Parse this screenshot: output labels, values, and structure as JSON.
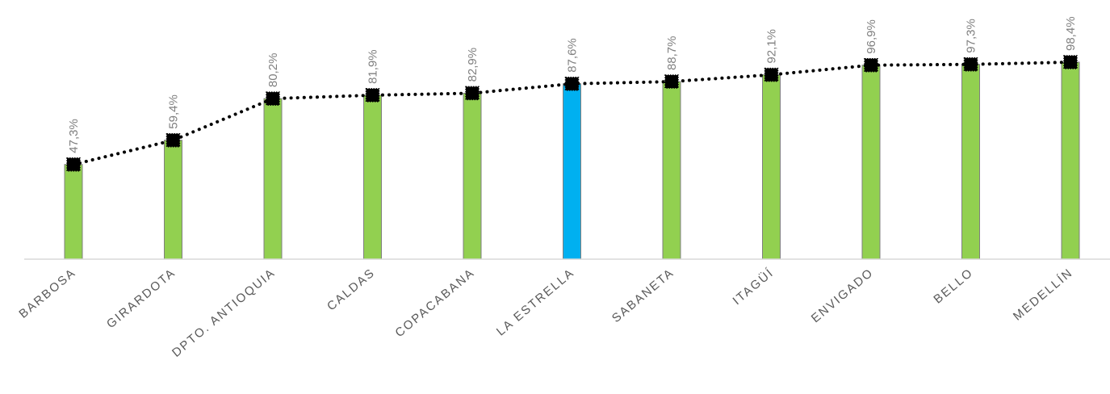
{
  "chart_data": {
    "type": "bar",
    "categories": [
      "BARBOSA",
      "GIRARDOTA",
      "DPTO. ANTIOQUIA",
      "CALDAS",
      "COPACABANA",
      "LA ESTRELLA",
      "SABANETA",
      "ITAGÜÍ",
      "ENVIGADO",
      "BELLO",
      "MEDELLÍN"
    ],
    "values": [
      47.3,
      59.4,
      80.2,
      81.9,
      82.9,
      87.6,
      88.7,
      92.1,
      96.9,
      97.3,
      98.4
    ],
    "data_labels": [
      "47,3%",
      "59,4%",
      "80,2%",
      "81,9%",
      "82,9%",
      "87,6%",
      "88,7%",
      "92,1%",
      "96,9%",
      "97,3%",
      "98,4%"
    ],
    "highlight_index": 5,
    "overlay": "dotted line with square markers through bar tops",
    "ylim": [
      0,
      100
    ],
    "grid": false,
    "legend": "none",
    "colors": {
      "bar": "#92D050",
      "highlight_bar": "#00B0F0",
      "bar_edge": "#7f7f7f",
      "line": "#000000",
      "marker": "#000000",
      "axis": "#d9d9d9",
      "value_label": "#7f7f7f",
      "category_label": "#595959"
    }
  }
}
